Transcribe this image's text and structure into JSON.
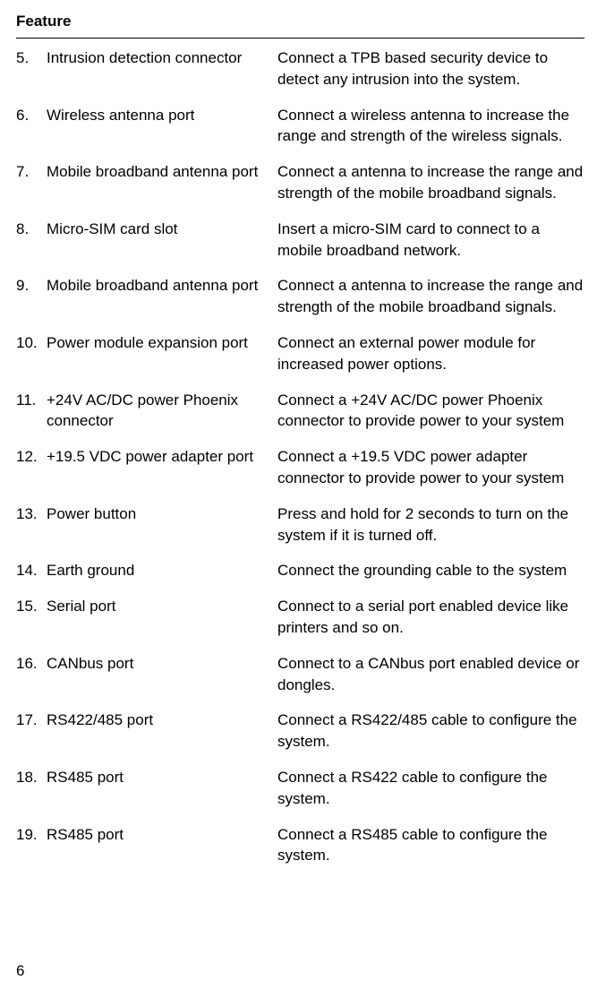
{
  "header": "Feature",
  "rows": [
    {
      "num": "5.",
      "name": "Intrusion detection connector",
      "desc": "Connect a TPB based security device to detect any intrusion into the system."
    },
    {
      "num": "6.",
      "name": "Wireless antenna port",
      "desc": "Connect a wireless antenna to increase the range and strength of the wireless signals."
    },
    {
      "num": "7.",
      "name": "Mobile broadband antenna port",
      "desc": "Connect a antenna to increase the range and strength of the mobile broadband signals."
    },
    {
      "num": "8.",
      "name": "Micro-SIM card slot",
      "desc": "Insert a micro-SIM card to connect to a mobile broadband network."
    },
    {
      "num": "9.",
      "name": "Mobile broadband antenna port",
      "desc": "Connect a antenna to increase the range and strength of the mobile broadband signals."
    },
    {
      "num": "10.",
      "name": "Power module expansion port",
      "desc": "Connect an external power module for increased power options."
    },
    {
      "num": "11.",
      "name": "+24V AC/DC power Phoenix connector",
      "desc": "Connect a +24V AC/DC power Phoenix connector to provide power to your system"
    },
    {
      "num": "12.",
      "name": "+19.5 VDC power adapter port",
      "desc": "Connect a +19.5 VDC power adapter connector to provide power to your system"
    },
    {
      "num": "13.",
      "name": "Power button",
      "desc": "Press and hold for 2 seconds to turn on the system if it is turned off."
    },
    {
      "num": "14.",
      "name": "Earth ground",
      "desc": "Connect the grounding cable to the system"
    },
    {
      "num": "15.",
      "name": "Serial port",
      "desc": "Connect to a serial port enabled device like printers and so on."
    },
    {
      "num": "16.",
      "name": "CANbus port",
      "desc": "Connect to a CANbus port enabled device or dongles."
    },
    {
      "num": "17.",
      "name": "RS422/485 port",
      "desc": "Connect a RS422/485 cable to configure the system."
    },
    {
      "num": "18.",
      "name": "RS485 port",
      "desc": "Connect a RS422 cable to configure the system."
    },
    {
      "num": "19.",
      "name": "RS485 port",
      "desc": "Connect a RS485 cable to configure the system."
    }
  ],
  "pageNumber": "6"
}
